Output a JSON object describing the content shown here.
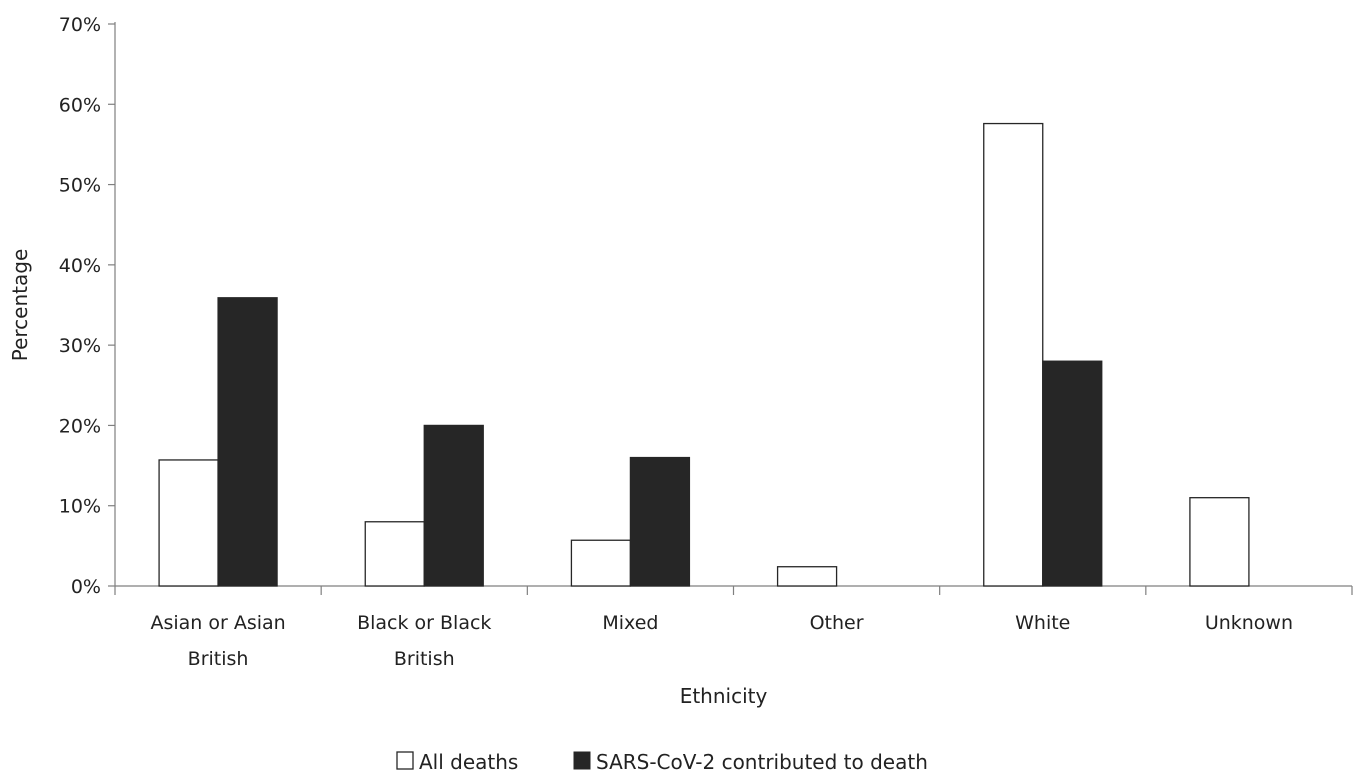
{
  "chart_data": {
    "type": "bar",
    "xlabel": "Ethnicity",
    "ylabel": "Percentage",
    "ylim": [
      0,
      70
    ],
    "y_ticks": [
      "0%",
      "10%",
      "20%",
      "30%",
      "40%",
      "50%",
      "60%",
      "70%"
    ],
    "y_tick_values": [
      0,
      10,
      20,
      30,
      40,
      50,
      60,
      70
    ],
    "categories": [
      [
        "Asian or Asian",
        "British"
      ],
      [
        "Black or Black",
        "British"
      ],
      [
        "Mixed"
      ],
      [
        "Other"
      ],
      [
        "White"
      ],
      [
        "Unknown"
      ]
    ],
    "series": [
      {
        "name": "All deaths",
        "values": [
          15.7,
          8.0,
          5.7,
          2.4,
          57.6,
          11.0
        ],
        "color": "#ffffff"
      },
      {
        "name": "SARS-CoV-2 contributed to death",
        "values": [
          35.9,
          20.0,
          16.0,
          0,
          28.0,
          0
        ],
        "color": "#262626"
      }
    ],
    "legend_position": "bottom-center",
    "grid": false
  }
}
